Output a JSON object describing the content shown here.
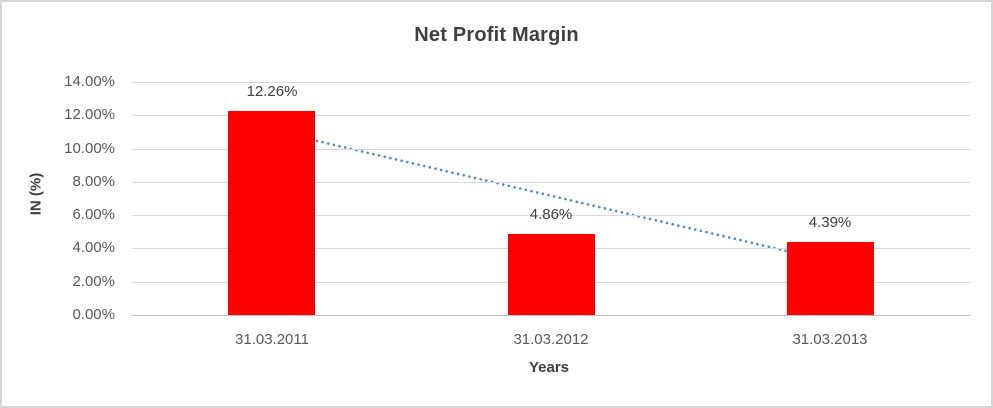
{
  "chart_data": {
    "type": "bar",
    "title": "Net Profit Margin",
    "xlabel": "Years",
    "ylabel": "IN (%)",
    "categories": [
      "31.03.2011",
      "31.03.2012",
      "31.03.2013"
    ],
    "values": [
      12.26,
      4.86,
      4.39
    ],
    "data_labels": [
      "12.26%",
      "4.86%",
      "4.39%"
    ],
    "ylim": [
      0,
      14
    ],
    "yticks": [
      0,
      2,
      4,
      6,
      8,
      10,
      12,
      14
    ],
    "ytick_labels": [
      "0.00%",
      "2.00%",
      "4.00%",
      "6.00%",
      "8.00%",
      "10.00%",
      "12.00%",
      "14.00%"
    ],
    "grid": true,
    "legend": "none",
    "colors": {
      "bar": "#ff0000",
      "trendline": "#4e8bc8",
      "gridline": "#d9d9d9",
      "axisline": "#bfbfbf",
      "title_text": "#3f3f3f",
      "tick_text": "#595959"
    },
    "trendline": {
      "type": "linear",
      "style": "dotted",
      "points_x": [
        1,
        3
      ],
      "points_y": [
        11.1,
        3.23
      ]
    }
  }
}
